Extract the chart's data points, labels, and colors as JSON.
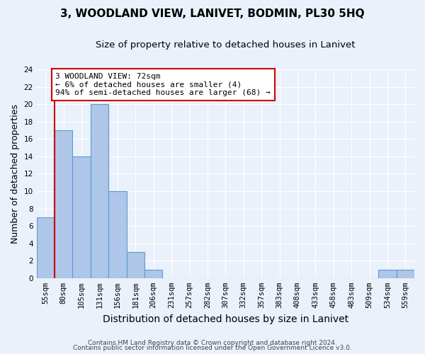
{
  "title": "3, WOODLAND VIEW, LANIVET, BODMIN, PL30 5HQ",
  "subtitle": "Size of property relative to detached houses in Lanivet",
  "xlabel": "Distribution of detached houses by size in Lanivet",
  "ylabel": "Number of detached properties",
  "categories": [
    "55sqm",
    "80sqm",
    "105sqm",
    "131sqm",
    "156sqm",
    "181sqm",
    "206sqm",
    "231sqm",
    "257sqm",
    "282sqm",
    "307sqm",
    "332sqm",
    "357sqm",
    "383sqm",
    "408sqm",
    "433sqm",
    "458sqm",
    "483sqm",
    "509sqm",
    "534sqm",
    "559sqm"
  ],
  "values": [
    7,
    17,
    14,
    20,
    10,
    3,
    1,
    0,
    0,
    0,
    0,
    0,
    0,
    0,
    0,
    0,
    0,
    0,
    0,
    1,
    1
  ],
  "bar_color": "#aec6e8",
  "bar_edge_color": "#5b9bd5",
  "subject_line_color": "#cc0000",
  "annotation_text": "3 WOODLAND VIEW: 72sqm\n← 6% of detached houses are smaller (4)\n94% of semi-detached houses are larger (68) →",
  "annotation_box_color": "#ffffff",
  "annotation_box_edge": "#cc0000",
  "ylim": [
    0,
    24
  ],
  "yticks": [
    0,
    2,
    4,
    6,
    8,
    10,
    12,
    14,
    16,
    18,
    20,
    22,
    24
  ],
  "footer_line1": "Contains HM Land Registry data © Crown copyright and database right 2024.",
  "footer_line2": "Contains public sector information licensed under the Open Government Licence v3.0.",
  "background_color": "#eaf1fb",
  "plot_bg_color": "#eaf1fb",
  "grid_color": "#ffffff",
  "title_fontsize": 11,
  "subtitle_fontsize": 9.5,
  "axis_label_fontsize": 9,
  "tick_fontsize": 7.5,
  "annotation_fontsize": 8,
  "footer_fontsize": 6.5
}
